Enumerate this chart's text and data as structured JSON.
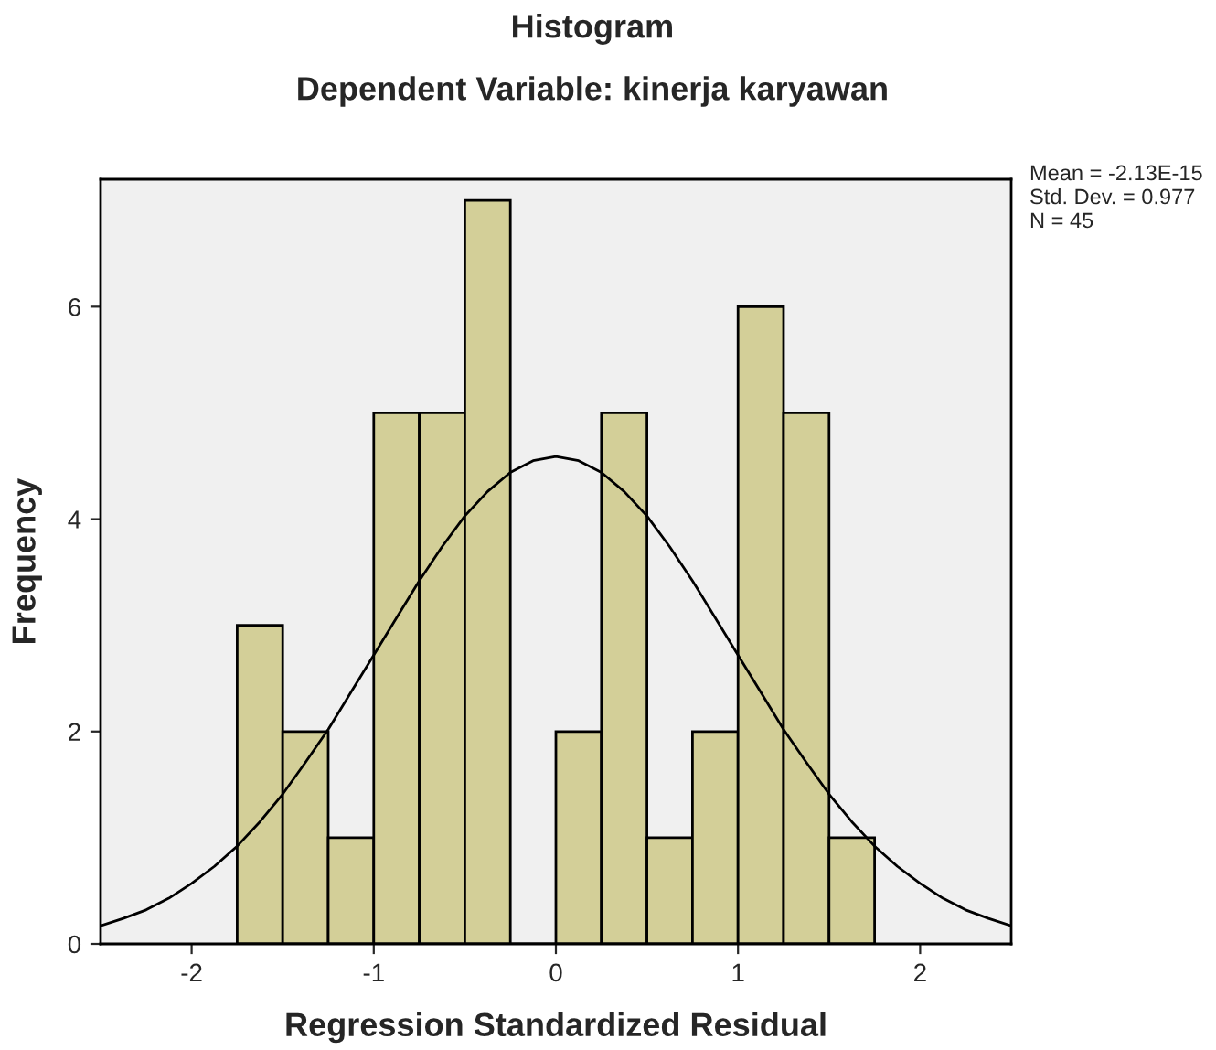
{
  "chart_data": {
    "type": "histogram",
    "title": "Histogram",
    "subtitle": "Dependent Variable: kinerja karyawan",
    "xlabel": "Regression Standardized Residual",
    "ylabel": "Frequency",
    "bins": [
      -1.75,
      -1.5,
      -1.25,
      -1.0,
      -0.75,
      -0.5,
      -0.25,
      0.0,
      0.25,
      0.5,
      0.75,
      1.0,
      1.25,
      1.5,
      1.75
    ],
    "values": [
      3,
      2,
      1,
      5,
      5,
      7,
      0,
      2,
      5,
      1,
      2,
      6,
      5,
      1
    ],
    "color": "#d3cf98",
    "series": [
      {
        "type": "line",
        "color": "#000000",
        "x": [
          -2.5,
          -2.375,
          -2.25,
          -2.125,
          -2.0,
          -1.875,
          -1.75,
          -1.625,
          -1.5,
          -1.375,
          -1.25,
          -1.125,
          -1.0,
          -0.875,
          -0.75,
          -0.625,
          -0.5,
          -0.375,
          -0.25,
          -0.125,
          0.0,
          0.125,
          0.25,
          0.375,
          0.5,
          0.625,
          0.75,
          0.875,
          1.0,
          1.125,
          1.25,
          1.375,
          1.5,
          1.625,
          1.75,
          1.875,
          2.0,
          2.125,
          2.25,
          2.375,
          2.5
        ],
        "values": [
          0.17,
          0.24,
          0.32,
          0.43,
          0.57,
          0.73,
          0.92,
          1.15,
          1.41,
          1.71,
          2.02,
          2.37,
          2.72,
          3.07,
          3.42,
          3.74,
          4.03,
          4.26,
          4.44,
          4.55,
          4.59,
          4.55,
          4.44,
          4.26,
          4.03,
          3.74,
          3.42,
          3.07,
          2.72,
          2.37,
          2.02,
          1.71,
          1.41,
          1.15,
          0.92,
          0.73,
          0.57,
          0.43,
          0.32,
          0.24,
          0.17
        ]
      }
    ],
    "xlim": [
      -2.5,
      2.5
    ],
    "xticks": [
      -2,
      -1,
      0,
      1,
      2
    ],
    "ylim": [
      0,
      7.2
    ],
    "yticks": [
      0,
      2,
      4,
      6
    ],
    "grid": false,
    "legend": false,
    "annotations": [
      "Mean = -2.13E-15",
      "Std. Dev. = 0.977",
      "N = 45"
    ]
  }
}
